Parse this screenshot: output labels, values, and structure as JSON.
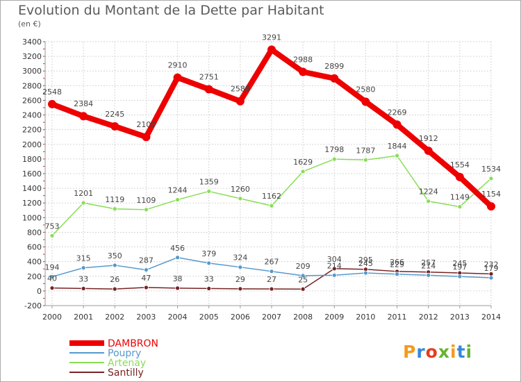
{
  "chart_data": {
    "type": "line",
    "title": "Evolution du Montant de la Dette par Habitant",
    "subtitle": "(en €)",
    "x": [
      "2000",
      "2001",
      "2002",
      "2003",
      "2004",
      "2005",
      "2006",
      "2007",
      "2008",
      "2009",
      "2010",
      "2011",
      "2012",
      "2013",
      "2014"
    ],
    "ylim": [
      -200,
      3400
    ],
    "yticks": [
      -200,
      0,
      200,
      400,
      600,
      800,
      1000,
      1200,
      1400,
      1600,
      1800,
      2000,
      2200,
      2400,
      2600,
      2800,
      3000,
      3200,
      3400
    ],
    "grid": true,
    "legend_position": "bottom-left",
    "series": [
      {
        "name": "DAMBRON",
        "color": "#ee0000",
        "values": [
          2548,
          2384,
          2245,
          2100,
          2910,
          2751,
          2588,
          3291,
          2988,
          2899,
          2580,
          2269,
          1912,
          1554,
          1154
        ]
      },
      {
        "name": "Poupry",
        "color": "#5599cc",
        "values": [
          194,
          315,
          350,
          287,
          456,
          379,
          324,
          267,
          209,
          214,
          245,
          229,
          214,
          197,
          179
        ]
      },
      {
        "name": "Artenay",
        "color": "#88dd55",
        "values": [
          753,
          1201,
          1119,
          1109,
          1244,
          1359,
          1260,
          1162,
          1629,
          1798,
          1787,
          1844,
          1224,
          1149,
          1534
        ]
      },
      {
        "name": "Santilly",
        "color": "#772222",
        "values": [
          40,
          33,
          26,
          47,
          38,
          33,
          29,
          27,
          25,
          304,
          295,
          266,
          257,
          245,
          232
        ]
      }
    ]
  },
  "logo": {
    "text": "Proxiti",
    "letters": [
      "P",
      "r",
      "o",
      "x",
      "i",
      "t",
      "i"
    ],
    "colors": [
      "#f59a1a",
      "#3388dd",
      "#e63c1e",
      "#66b32e",
      "#f59a1a",
      "#3388dd",
      "#66b32e"
    ]
  }
}
